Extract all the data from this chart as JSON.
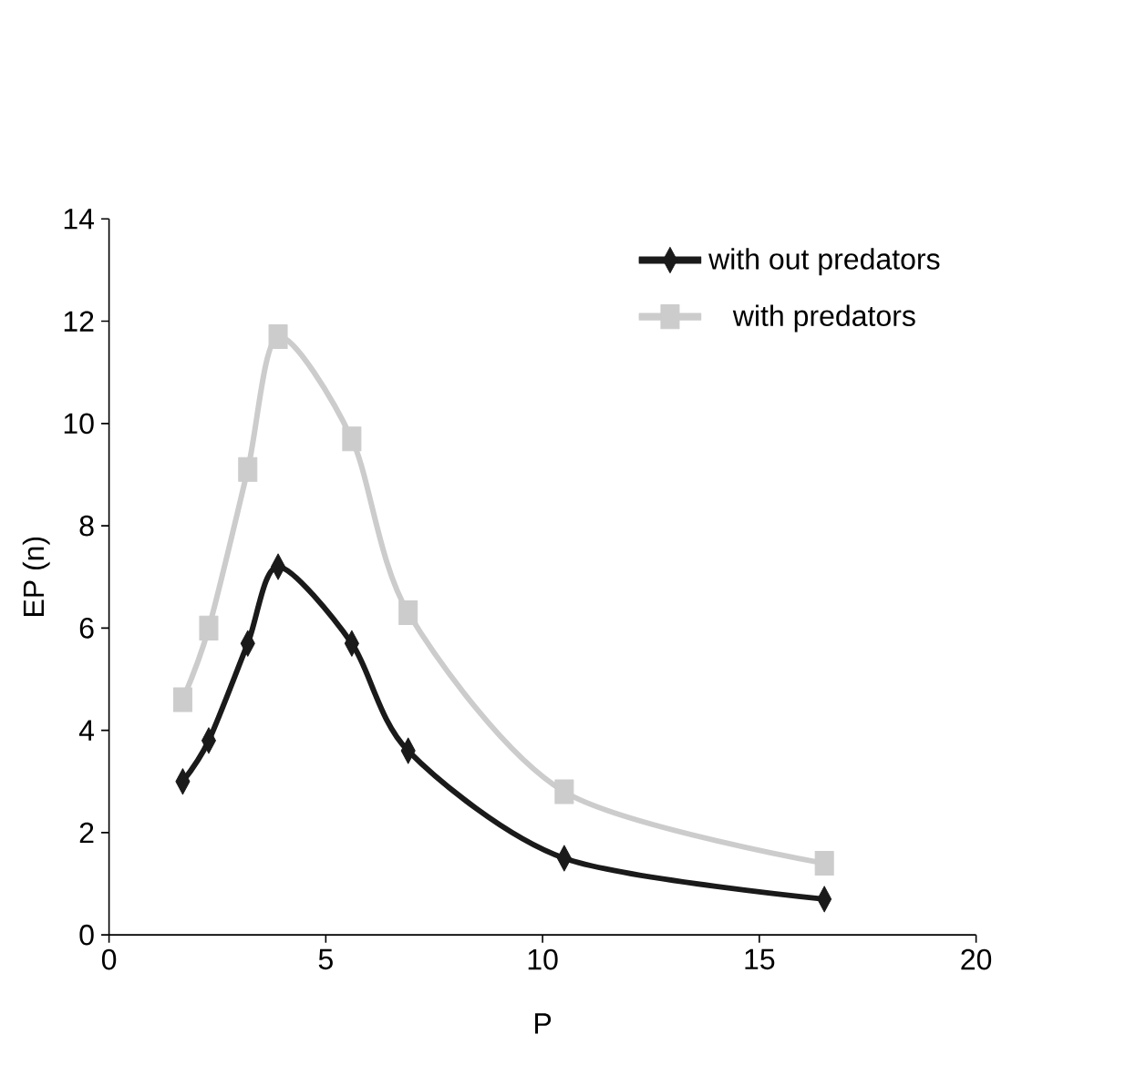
{
  "chart_data": {
    "type": "line",
    "xlabel": "P",
    "ylabel": "EP (n)",
    "x": [
      1.7,
      2.3,
      3.2,
      3.9,
      5.6,
      6.9,
      10.5,
      16.5
    ],
    "series": [
      {
        "name": "with out predators",
        "color": "#1a1a1a",
        "marker": "diamond",
        "values": [
          3.0,
          3.8,
          5.7,
          7.2,
          5.7,
          3.6,
          1.5,
          0.7
        ]
      },
      {
        "name": "with predators",
        "color": "#cccccc",
        "marker": "square",
        "values": [
          4.6,
          6.0,
          9.1,
          11.7,
          9.7,
          6.3,
          2.8,
          1.4
        ]
      }
    ],
    "xlim": [
      0,
      20
    ],
    "xticks": [
      0,
      5,
      10,
      15,
      20
    ],
    "ylim": [
      0,
      14
    ],
    "yticks": [
      0,
      2,
      4,
      6,
      8,
      10,
      12,
      14
    ],
    "legend": "top right",
    "grid": false,
    "line_style": "solid"
  }
}
